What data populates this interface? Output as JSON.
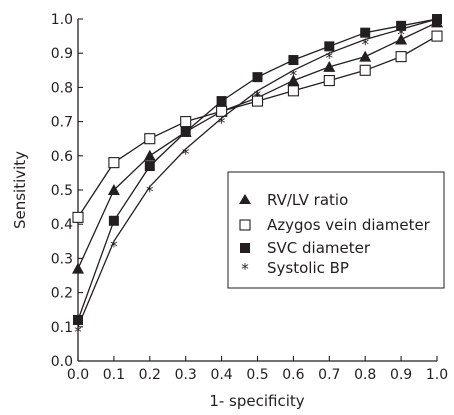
{
  "chart_data": {
    "type": "line",
    "xlabel": "1- specificity",
    "ylabel": "Sensitivity",
    "xlim": [
      0.0,
      1.0
    ],
    "ylim": [
      0.0,
      1.0
    ],
    "xticks": [
      "0.0",
      "0.1",
      "0.2",
      "0.3",
      "0.4",
      "0.5",
      "0.6",
      "0.7",
      "0.8",
      "0.9",
      "1.0"
    ],
    "yticks": [
      "0.0",
      "0.1",
      "0.2",
      "0.3",
      "0.4",
      "0.5",
      "0.6",
      "0.7",
      "0.8",
      "0.9",
      "1.0"
    ],
    "grid": false,
    "legend_position": "right",
    "line_color": "#231f20",
    "x": [
      0.0,
      0.1,
      0.2,
      0.3,
      0.4,
      0.5,
      0.6,
      0.7,
      0.8,
      0.9,
      1.0
    ],
    "series": [
      {
        "name": "RV/LV ratio",
        "marker": "filled-triangle",
        "values": [
          0.27,
          0.5,
          0.6,
          0.67,
          0.73,
          0.77,
          0.82,
          0.86,
          0.89,
          0.94,
          0.99
        ]
      },
      {
        "name": "Azygos vein diameter",
        "marker": "open-square",
        "values": [
          0.42,
          0.58,
          0.65,
          0.7,
          0.73,
          0.76,
          0.79,
          0.82,
          0.85,
          0.89,
          0.95
        ]
      },
      {
        "name": "SVC diameter",
        "marker": "filled-square",
        "values": [
          0.12,
          0.41,
          0.57,
          0.67,
          0.76,
          0.83,
          0.88,
          0.92,
          0.96,
          0.98,
          1.0
        ]
      },
      {
        "name": "Systolic BP",
        "marker": "asterisk",
        "values": [
          0.1,
          0.35,
          0.51,
          0.62,
          0.71,
          0.79,
          0.85,
          0.9,
          0.94,
          0.97,
          1.0
        ]
      }
    ]
  }
}
